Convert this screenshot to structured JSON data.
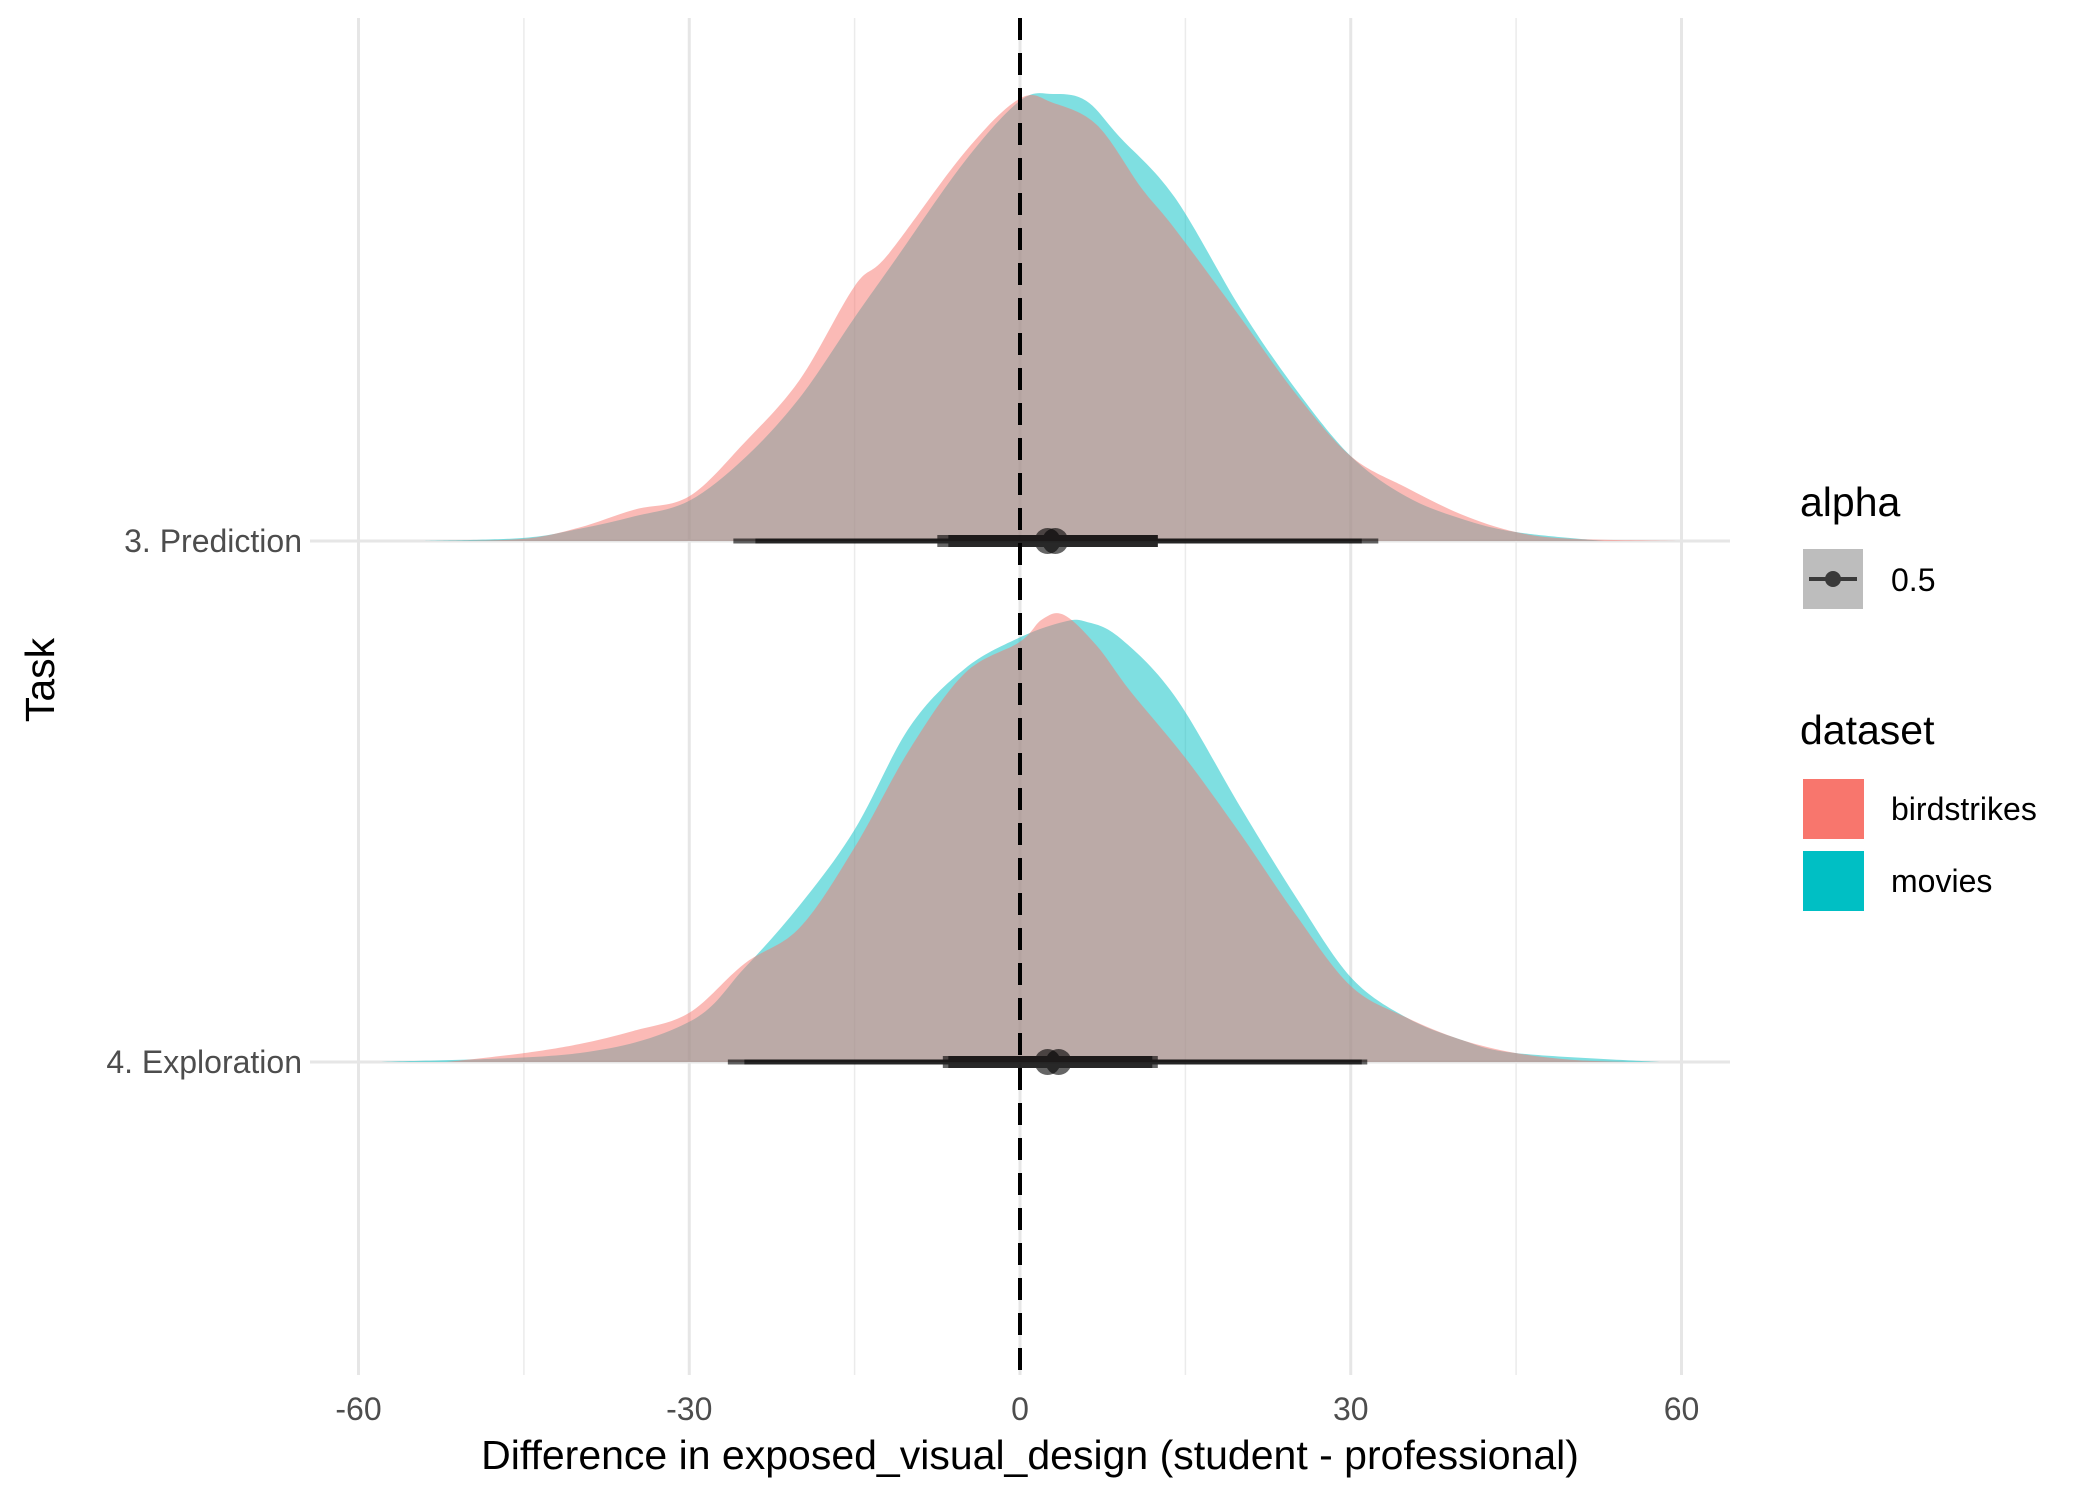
{
  "chart_data": {
    "type": "density ridgeline with interval",
    "xlabel": "Difference in exposed_visual_design (student - professional)",
    "ylabel": "Task",
    "xlim": [
      -60,
      60
    ],
    "x_ticks": [
      -60,
      -30,
      0,
      30,
      60
    ],
    "x_tick_labels": [
      "-60",
      "-30",
      "0",
      "30",
      "60"
    ],
    "categories": [
      "3. Prediction",
      "4. Exploration"
    ],
    "reference_line": {
      "x": 0,
      "style": "dashed"
    },
    "colors": {
      "birdstrikes": "#F8766D",
      "movies": "#00BFC4",
      "interval": "#000000"
    },
    "fill_alpha": 0.5,
    "legend": {
      "alpha": {
        "title": "alpha",
        "entries": [
          "0.5"
        ]
      },
      "dataset": {
        "title": "dataset",
        "entries": [
          "birdstrikes",
          "movies"
        ]
      }
    },
    "series": [
      {
        "task": "3. Prediction",
        "dataset": "movies",
        "density": [
          [
            -54,
            0
          ],
          [
            -45,
            0.007
          ],
          [
            -40,
            0.027
          ],
          [
            -35,
            0.055
          ],
          [
            -30,
            0.09
          ],
          [
            -25,
            0.185
          ],
          [
            -20,
            0.32
          ],
          [
            -15,
            0.5
          ],
          [
            -11,
            0.64
          ],
          [
            -5,
            0.85
          ],
          [
            0,
            0.985
          ],
          [
            3,
            1.0
          ],
          [
            6,
            0.985
          ],
          [
            9,
            0.905
          ],
          [
            14,
            0.77
          ],
          [
            20,
            0.52
          ],
          [
            25,
            0.34
          ],
          [
            30,
            0.19
          ],
          [
            35,
            0.1
          ],
          [
            40,
            0.05
          ],
          [
            45,
            0.02
          ],
          [
            53,
            0
          ]
        ],
        "point": 3.2,
        "interval_66": [
          -6.5,
          12.5
        ],
        "interval_95": [
          -24,
          31
        ]
      },
      {
        "task": "3. Prediction",
        "dataset": "birdstrikes",
        "density": [
          [
            -53,
            0
          ],
          [
            -45,
            0.005
          ],
          [
            -40,
            0.03
          ],
          [
            -35,
            0.07
          ],
          [
            -30,
            0.1
          ],
          [
            -25,
            0.22
          ],
          [
            -20,
            0.36
          ],
          [
            -15,
            0.57
          ],
          [
            -12,
            0.64
          ],
          [
            -5,
            0.87
          ],
          [
            0,
            0.99
          ],
          [
            3,
            0.98
          ],
          [
            7,
            0.93
          ],
          [
            11,
            0.79
          ],
          [
            14,
            0.7
          ],
          [
            20,
            0.5
          ],
          [
            25,
            0.33
          ],
          [
            30,
            0.19
          ],
          [
            35,
            0.12
          ],
          [
            40,
            0.06
          ],
          [
            45,
            0.02
          ],
          [
            50,
            0.005
          ],
          [
            60,
            0
          ]
        ],
        "point": 2.5,
        "interval_66": [
          -7.5,
          12.5
        ],
        "interval_95": [
          -26,
          32.5
        ]
      },
      {
        "task": "4. Exploration",
        "dataset": "movies",
        "density": [
          [
            -58,
            0
          ],
          [
            -40,
            0.02
          ],
          [
            -30,
            0.09
          ],
          [
            -25,
            0.21
          ],
          [
            -20,
            0.35
          ],
          [
            -15,
            0.52
          ],
          [
            -10,
            0.75
          ],
          [
            -5,
            0.88
          ],
          [
            0,
            0.95
          ],
          [
            4,
            0.985
          ],
          [
            6,
            0.985
          ],
          [
            9,
            0.95
          ],
          [
            14,
            0.82
          ],
          [
            20,
            0.57
          ],
          [
            25,
            0.37
          ],
          [
            30,
            0.19
          ],
          [
            35,
            0.1
          ],
          [
            40,
            0.05
          ],
          [
            45,
            0.02
          ],
          [
            58,
            0
          ]
        ],
        "point": 3.5,
        "interval_66": [
          -6.5,
          12.5
        ],
        "interval_95": [
          -25,
          31.5
        ]
      },
      {
        "task": "4. Exploration",
        "dataset": "birdstrikes",
        "density": [
          [
            -52,
            0
          ],
          [
            -45,
            0.02
          ],
          [
            -40,
            0.04
          ],
          [
            -35,
            0.07
          ],
          [
            -30,
            0.11
          ],
          [
            -25,
            0.22
          ],
          [
            -20,
            0.3
          ],
          [
            -15,
            0.48
          ],
          [
            -10,
            0.7
          ],
          [
            -5,
            0.87
          ],
          [
            0,
            0.94
          ],
          [
            2,
            0.99
          ],
          [
            4,
            1.0
          ],
          [
            7,
            0.93
          ],
          [
            10,
            0.83
          ],
          [
            15,
            0.68
          ],
          [
            20,
            0.51
          ],
          [
            25,
            0.33
          ],
          [
            30,
            0.17
          ],
          [
            35,
            0.1
          ],
          [
            40,
            0.05
          ],
          [
            45,
            0.02
          ],
          [
            50,
            0.005
          ],
          [
            55,
            0
          ]
        ],
        "point": 2.5,
        "interval_66": [
          -7,
          12
        ],
        "interval_95": [
          -26.5,
          31
        ]
      }
    ]
  }
}
